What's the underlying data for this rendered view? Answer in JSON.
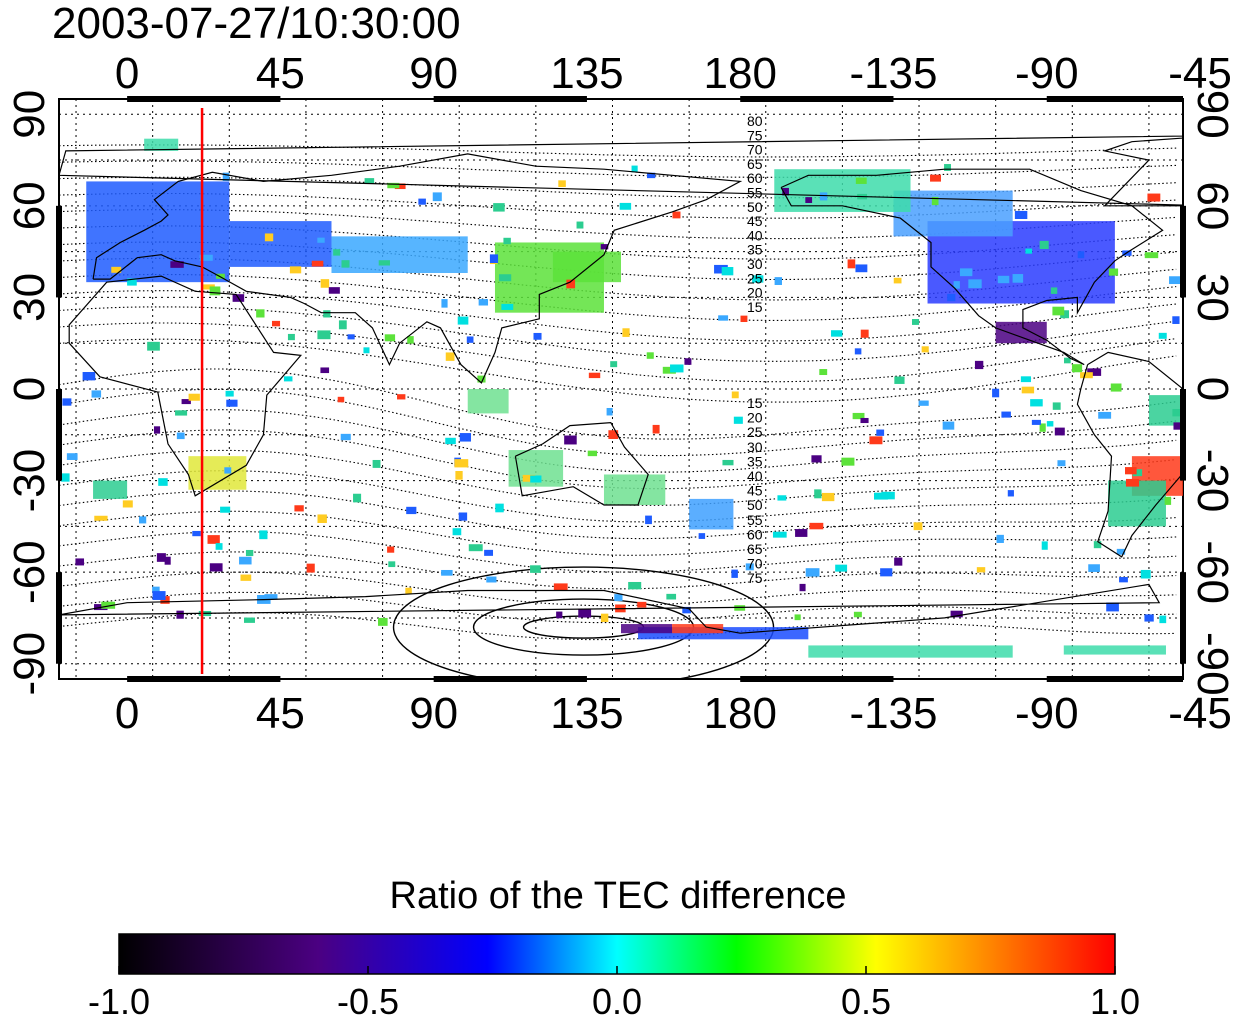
{
  "title": "2003-07-27/10:30:00",
  "map": {
    "top_lon_ticks": [
      "0",
      "45",
      "90",
      "135",
      "180",
      "-135",
      "-90",
      "-45"
    ],
    "bottom_lon_ticks": [
      "0",
      "45",
      "90",
      "135",
      "180",
      "-135",
      "-90",
      "-45"
    ],
    "left_lat_ticks": [
      "90",
      "60",
      "30",
      "0",
      "-30",
      "-60",
      "-90"
    ],
    "right_lat_ticks": [
      "90",
      "60",
      "30",
      "0",
      "-30",
      "-60",
      "-90"
    ],
    "lon_range": [
      -20,
      310
    ],
    "lat_range": [
      -95,
      95
    ],
    "meridian_marker_lon": 22,
    "meridian_marker_color": "#ff0000",
    "contour_labels_north": [
      "80",
      "75",
      "70",
      "65",
      "60",
      "55",
      "50",
      "45",
      "40",
      "35",
      "30",
      "25",
      "20",
      "15"
    ],
    "contour_labels_south": [
      "15",
      "20",
      "25",
      "30",
      "35",
      "40",
      "45",
      "50",
      "55",
      "60",
      "65",
      "70",
      "75"
    ]
  },
  "colorbar": {
    "title": "Ratio of the TEC difference",
    "ticks": [
      "-1.0",
      "-0.5",
      "0.0",
      "0.5",
      "1.0"
    ],
    "range": [
      -1.0,
      1.0
    ],
    "stops": [
      "#000000",
      "#4b0082",
      "#0000ff",
      "#00ffff",
      "#00ff00",
      "#ffff00",
      "#ff0000"
    ]
  }
}
